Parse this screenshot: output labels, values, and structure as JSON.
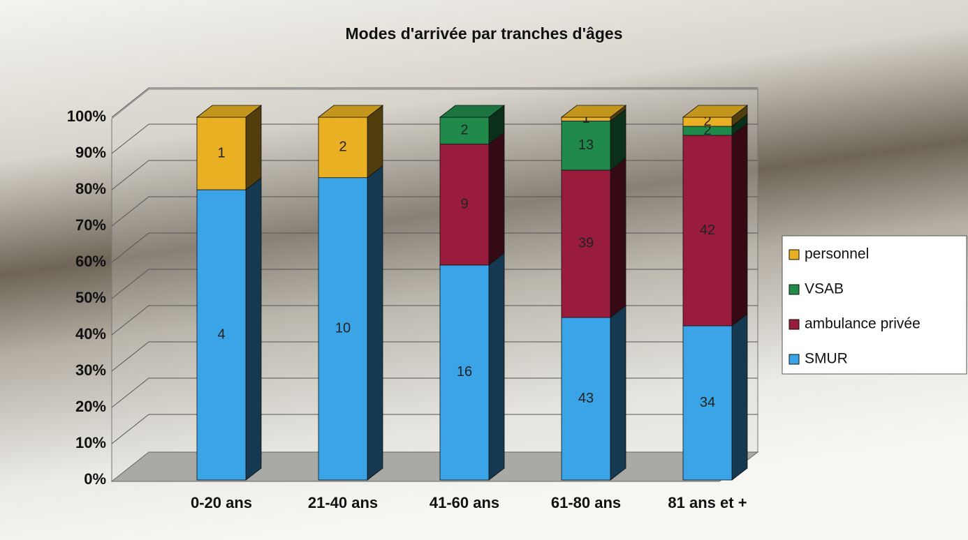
{
  "chart_data": {
    "type": "bar",
    "stacking": "percent",
    "title": "Modes d'arrivée par tranches d'âges",
    "categories": [
      "0-20 ans",
      "21-40 ans",
      "41-60 ans",
      "61-80 ans",
      "81 ans et +"
    ],
    "series": [
      {
        "name": "SMUR",
        "color": "#3aa4e6",
        "values": [
          4,
          10,
          16,
          43,
          34
        ]
      },
      {
        "name": "ambulance privée",
        "color": "#9a1c3c",
        "values": [
          null,
          null,
          9,
          39,
          42
        ]
      },
      {
        "name": "VSAB",
        "color": "#1f8a4a",
        "values": [
          null,
          null,
          2,
          13,
          2
        ]
      },
      {
        "name": "personnel",
        "color": "#e8b022",
        "values": [
          1,
          2,
          null,
          1,
          2
        ]
      }
    ],
    "ylim": [
      0,
      100
    ],
    "yticks": [
      {
        "value": 0,
        "label": "0%"
      },
      {
        "value": 10,
        "label": "10%"
      },
      {
        "value": 20,
        "label": "20%"
      },
      {
        "value": 30,
        "label": "30%"
      },
      {
        "value": 40,
        "label": "40%"
      },
      {
        "value": 50,
        "label": "50%"
      },
      {
        "value": 60,
        "label": "60%"
      },
      {
        "value": 70,
        "label": "70%"
      },
      {
        "value": 80,
        "label": "80%"
      },
      {
        "value": 90,
        "label": "90%"
      },
      {
        "value": 100,
        "label": "100%"
      }
    ],
    "grid": true,
    "legend": "right"
  }
}
